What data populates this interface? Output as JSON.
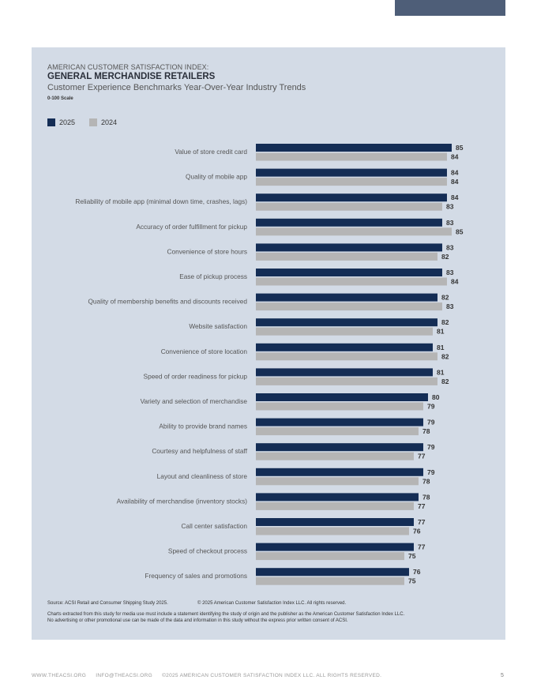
{
  "header": {
    "kicker": "AMERICAN CUSTOMER SATISFACTION INDEX:",
    "title": "GENERAL MERCHANDISE RETAILERS",
    "subtitle": "Customer Experience Benchmarks Year-Over-Year Industry Trends",
    "scale": "0-100 Scale"
  },
  "colors": {
    "series_2025": "#142d55",
    "series_2024": "#b5b5b5",
    "panel": "#d3dbe6"
  },
  "chart_data": {
    "type": "bar",
    "orientation": "horizontal",
    "legend_position": "top-left",
    "grid": false,
    "categories": [
      "Value of store credit card",
      "Quality of mobile app",
      "Reliability of mobile app  (minimal down time, crashes, lags)",
      "Accuracy of order fulfillment for pickup",
      "Convenience of store hours",
      "Ease of pickup process",
      "Quality of membership benefits and discounts received",
      "Website satisfaction",
      "Convenience of store location",
      "Speed of order readiness for pickup",
      "Variety and selection of merchandise",
      "Ability to provide brand names",
      "Courtesy and helpfulness of staff",
      "Layout and cleanliness of store",
      "Availability of merchandise (inventory stocks)",
      "Call center satisfaction",
      "Speed of checkout process",
      "Frequency of sales and promotions"
    ],
    "series": [
      {
        "name": "2025",
        "values": [
          85,
          84,
          84,
          83,
          83,
          83,
          82,
          82,
          81,
          81,
          80,
          79,
          79,
          79,
          78,
          77,
          77,
          76
        ]
      },
      {
        "name": "2024",
        "values": [
          84,
          84,
          83,
          85,
          82,
          84,
          83,
          81,
          82,
          82,
          79,
          78,
          77,
          78,
          77,
          76,
          75,
          75
        ]
      }
    ]
  },
  "notes": {
    "source": "Source: ACSI Retail and Consumer Shipping Study 2025.",
    "copyright": "© 2025 American Customer Satisfaction Index LLC. All rights reserved.",
    "line1": "Charts extracted from this study for media use must include a statement identifying the study of origin and the publisher as the American Customer Satisfaction Index LLC.",
    "line2": "No advertising or other promotional use can be made of the data and information in this study without the express prior written consent of ACSI."
  },
  "footer": {
    "website": "WWW.THEACSI.ORG",
    "email": "INFO@THEACSI.ORG",
    "copyright": "©2025 AMERICAN CUSTOMER SATISFACTION INDEX LLC. ALL RIGHTS RESERVED.",
    "page": "5"
  }
}
